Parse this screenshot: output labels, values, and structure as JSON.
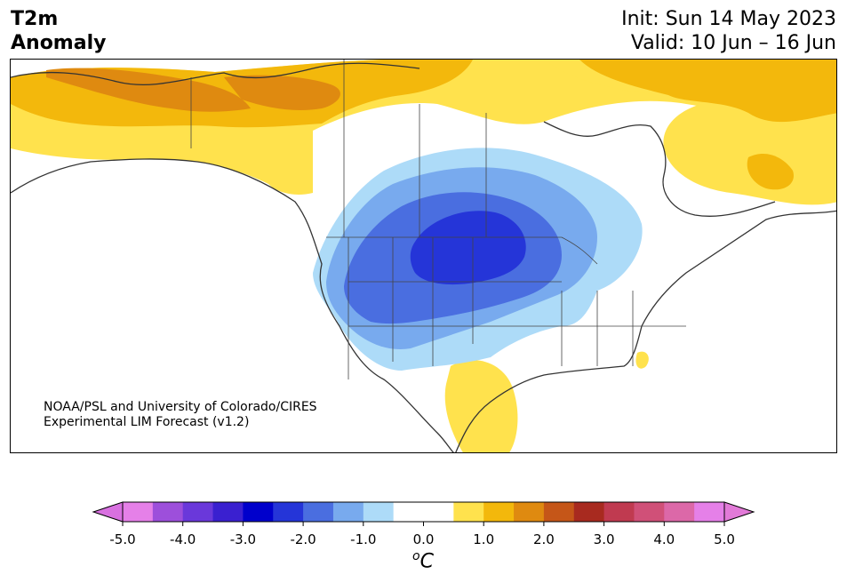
{
  "header": {
    "variable": "T2m",
    "quantity": "Anomaly",
    "init": "Init: Sun 14 May 2023",
    "valid": "Valid: 10 Jun – 16 Jun"
  },
  "map": {
    "credit_line1": "NOAA/PSL and University of Colorado/CIRES",
    "credit_line2": "Experimental LIM Forecast (v1.2)"
  },
  "colorbar": {
    "unit_base": "C",
    "unit_sup": "o",
    "tick_labels": [
      "-5.0",
      "-4.0",
      "-3.0",
      "-2.0",
      "-1.0",
      "0.0",
      "1.0",
      "2.0",
      "3.0",
      "4.0",
      "5.0"
    ],
    "colors": [
      "#e580e8",
      "#9d4fdb",
      "#6a38da",
      "#3a20d0",
      "#0000cc",
      "#2535d8",
      "#4a6ee0",
      "#78aaee",
      "#addbf8",
      "#ffffff",
      "#ffffff",
      "#ffe24d",
      "#f3b80c",
      "#df8a10",
      "#c55618",
      "#a82a1f",
      "#c03a50",
      "#d05078",
      "#dc68a8",
      "#e580e8"
    ],
    "under_color": "#d870e0",
    "over_color": "#e27ad8"
  },
  "legend_colors": {
    "warm_1": "#ffe24d",
    "warm_2": "#f3b80c",
    "warm_3": "#df8a10",
    "cool_1": "#addbf8",
    "cool_2": "#78aaee",
    "cool_3": "#4a6ee0",
    "cool_4": "#2535d8"
  }
}
